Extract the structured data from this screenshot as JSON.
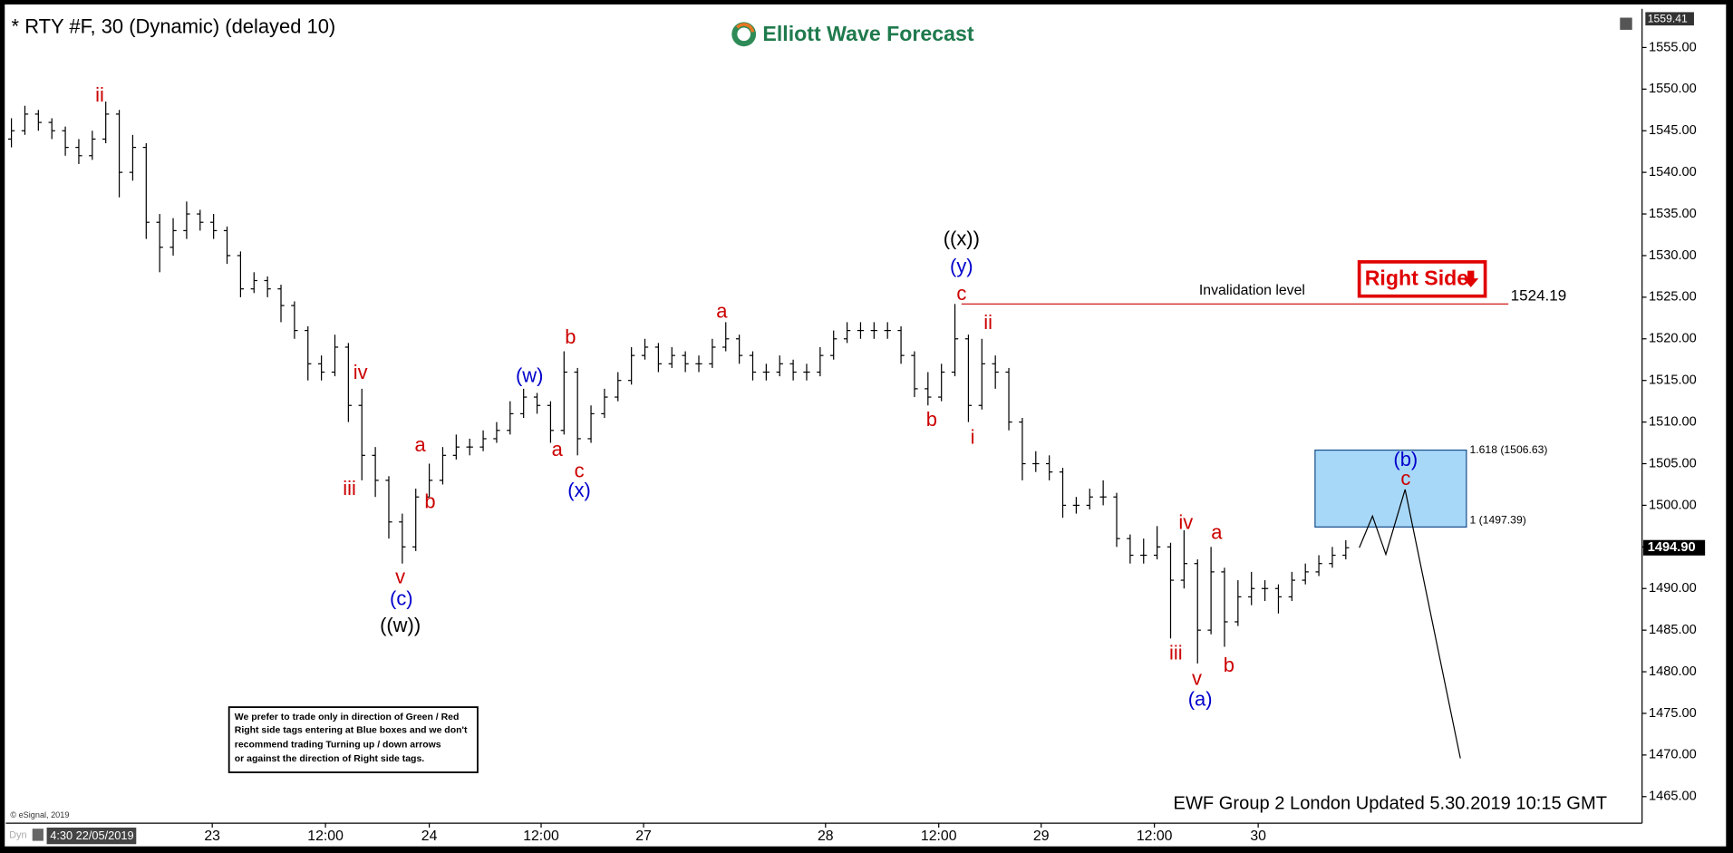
{
  "chart_data": {
    "type": "ohlc",
    "title": "* RTY #F, 30 (Dynamic) (delayed 10)",
    "brand": "Elliott Wave Forecast",
    "top_price_label": 1559.41,
    "bar_color": "#000000",
    "open": [
      1544,
      1545,
      1547,
      1546,
      1545,
      1543,
      1542,
      1544,
      1547,
      1540,
      1543,
      1534,
      1531,
      1533,
      1535,
      1534,
      1533,
      1530,
      1526,
      1527,
      1526,
      1524,
      1521,
      1517,
      1516,
      1519,
      1512,
      1506,
      1503,
      1498,
      1495,
      1501,
      1503,
      1506,
      1507,
      1507,
      1508,
      1509,
      1511,
      1513,
      1512,
      1509,
      1516,
      1508,
      1511,
      1513,
      1515,
      1518,
      1519,
      1517,
      1518,
      1517,
      1517,
      1519,
      1520,
      1518,
      1516,
      1516,
      1517,
      1516,
      1516,
      1518,
      1520,
      1521,
      1521,
      1521,
      1521,
      1518,
      1514,
      1513,
      1516,
      1520,
      1512,
      1517,
      1516,
      1510,
      1505,
      1505,
      1504,
      1500,
      1500,
      1501,
      1501,
      1496,
      1494,
      1494,
      1495,
      1491,
      1493,
      1485,
      1492,
      1486,
      1489,
      1490,
      1490,
      1489,
      1491,
      1492,
      1493,
      1494
    ],
    "high": [
      1546.5,
      1548,
      1547.5,
      1546.5,
      1545.5,
      1544,
      1545,
      1548.5,
      1547.5,
      1544.5,
      1543.5,
      1535,
      1534.5,
      1536.5,
      1535.5,
      1535,
      1533.5,
      1530.5,
      1528,
      1527.5,
      1526.5,
      1524.5,
      1521.5,
      1518,
      1520.5,
      1519.5,
      1514,
      1507,
      1503.5,
      1499,
      1502,
      1505,
      1507,
      1508.5,
      1508,
      1509,
      1510,
      1512.5,
      1514,
      1513.5,
      1512.5,
      1518.5,
      1516.5,
      1512,
      1514,
      1516,
      1519,
      1520,
      1519.5,
      1519,
      1518.5,
      1518,
      1520,
      1522,
      1520.5,
      1518.5,
      1517,
      1518,
      1517.5,
      1517,
      1519,
      1521,
      1522,
      1522,
      1522,
      1522,
      1521.5,
      1518.5,
      1516,
      1517,
      1524.19,
      1520.5,
      1520,
      1518,
      1516.5,
      1510.5,
      1506.5,
      1506,
      1504.5,
      1501,
      1502,
      1503,
      1501.5,
      1496.5,
      1496,
      1497.5,
      1495.5,
      1497,
      1493.5,
      1495,
      1492.5,
      1491,
      1492,
      1491,
      1490.5,
      1492,
      1493,
      1494,
      1495,
      1495.8
    ],
    "low": [
      1543,
      1544.5,
      1545,
      1544,
      1542,
      1541,
      1541.5,
      1543.5,
      1537,
      1539,
      1532,
      1528,
      1530,
      1532,
      1533,
      1532,
      1529,
      1525,
      1525.5,
      1525,
      1522,
      1520,
      1515,
      1515,
      1515.5,
      1510,
      1503,
      1501,
      1496,
      1493,
      1494.5,
      1501,
      1502.5,
      1505.5,
      1506,
      1506.5,
      1507.5,
      1508.5,
      1510.5,
      1511,
      1507.5,
      1508.5,
      1506,
      1507.5,
      1510.5,
      1512.5,
      1514.5,
      1517.5,
      1516,
      1516.5,
      1516,
      1516,
      1516.5,
      1518.5,
      1517,
      1515,
      1515,
      1515.5,
      1515,
      1515,
      1515.5,
      1517.5,
      1519.5,
      1520,
      1520,
      1520,
      1517,
      1513,
      1512,
      1512.5,
      1515.5,
      1510,
      1511.5,
      1514,
      1509,
      1503,
      1504,
      1503,
      1498.5,
      1499,
      1499.5,
      1500,
      1495,
      1493,
      1493,
      1493.5,
      1484,
      1490,
      1481,
      1484.5,
      1483,
      1485.5,
      1488,
      1488.5,
      1487,
      1488.5,
      1490.5,
      1491.5,
      1492.5,
      1493.5
    ],
    "close": [
      1545,
      1547,
      1546,
      1545,
      1543,
      1542,
      1544,
      1547,
      1540,
      1543,
      1534,
      1531,
      1533,
      1535,
      1534,
      1533,
      1530,
      1526,
      1527,
      1526,
      1524,
      1521,
      1517,
      1516,
      1519,
      1512,
      1506,
      1503,
      1498,
      1495,
      1501,
      1503,
      1506,
      1507,
      1507,
      1508,
      1509,
      1511,
      1513,
      1512,
      1509,
      1516,
      1508,
      1511,
      1513,
      1515,
      1518,
      1519,
      1517,
      1518,
      1517,
      1517,
      1519,
      1520,
      1518,
      1516,
      1516,
      1517,
      1516,
      1516,
      1518,
      1520,
      1521,
      1521,
      1521,
      1521,
      1518,
      1514,
      1513,
      1516,
      1520,
      1512,
      1517,
      1516,
      1510,
      1505,
      1505,
      1504,
      1500,
      1500,
      1501,
      1501,
      1496,
      1494,
      1494,
      1495,
      1491,
      1493,
      1485,
      1492,
      1486,
      1489,
      1490,
      1490,
      1489,
      1491,
      1492,
      1493,
      1494,
      1494.9
    ],
    "xlim": [
      -0.33,
      120.98
    ],
    "xticks": [
      {
        "value": 14.9,
        "label": "23"
      },
      {
        "value": 23.3,
        "label": "12:00"
      },
      {
        "value": 31,
        "label": "24"
      },
      {
        "value": 39.3,
        "label": "12:00"
      },
      {
        "value": 46.9,
        "label": "27"
      },
      {
        "value": 60.4,
        "label": "28"
      },
      {
        "value": 68.8,
        "label": "12:00"
      },
      {
        "value": 76.4,
        "label": "29"
      },
      {
        "value": 84.8,
        "label": "12:00"
      },
      {
        "value": 92.5,
        "label": "30"
      }
    ],
    "ylim": [
      1461.81,
      1559.38
    ],
    "yticks": [
      {
        "value": 1465,
        "label": "1465.00"
      },
      {
        "value": 1470,
        "label": "1470.00"
      },
      {
        "value": 1475,
        "label": "1475.00"
      },
      {
        "value": 1480,
        "label": "1480.00"
      },
      {
        "value": 1485,
        "label": "1485.00"
      },
      {
        "value": 1490,
        "label": "1490.00"
      },
      {
        "value": 1495,
        "label": "1495.00"
      },
      {
        "value": 1500,
        "label": "1500.00"
      },
      {
        "value": 1505,
        "label": "1505.00"
      },
      {
        "value": 1510,
        "label": "1510.00"
      },
      {
        "value": 1515,
        "label": "1515.00"
      },
      {
        "value": 1520,
        "label": "1520.00"
      },
      {
        "value": 1525,
        "label": "1525.00"
      },
      {
        "value": 1530,
        "label": "1530.00"
      },
      {
        "value": 1535,
        "label": "1535.00"
      },
      {
        "value": 1540,
        "label": "1540.00"
      },
      {
        "value": 1545,
        "label": "1545.00"
      },
      {
        "value": 1550,
        "label": "1550.00"
      },
      {
        "value": 1555,
        "label": "1555.00"
      }
    ],
    "last_price": {
      "value": 1494.9,
      "label": "1494.90"
    },
    "invalidation": {
      "text": "Invalidation level",
      "value": 1524.19,
      "color": "#cc0000"
    },
    "right_side_tag": "Right Side",
    "box": {
      "color": "#a8d8f8",
      "top": {
        "value": 1506.63,
        "label": "1.618 (1506.63)"
      },
      "bottom": {
        "value": 1497.39,
        "label": "1 (1497.39)"
      }
    },
    "projection": {
      "x": [
        100,
        100.98,
        101.97,
        103.4,
        107.5
      ],
      "values": [
        1494.9,
        1498.7,
        1494.1,
        1501.9,
        1469.6
      ]
    },
    "wave_labels": [
      {
        "text": "ii",
        "color": "#cc0000"
      },
      {
        "text": "iii",
        "color": "#cc0000"
      },
      {
        "text": "iv",
        "color": "#cc0000"
      },
      {
        "text": "v",
        "color": "#cc0000"
      },
      {
        "text": "(c)",
        "color": "#0000cc"
      },
      {
        "text": "((w))",
        "color": "#000000"
      },
      {
        "text": "a",
        "color": "#cc0000"
      },
      {
        "text": "b",
        "color": "#cc0000"
      },
      {
        "text": "(w)",
        "color": "#0000cc"
      },
      {
        "text": "a",
        "color": "#cc0000"
      },
      {
        "text": "b",
        "color": "#cc0000"
      },
      {
        "text": "c",
        "color": "#cc0000"
      },
      {
        "text": "(x)",
        "color": "#0000cc"
      },
      {
        "text": "a",
        "color": "#cc0000"
      },
      {
        "text": "b",
        "color": "#cc0000"
      },
      {
        "text": "c",
        "color": "#cc0000"
      },
      {
        "text": "(y)",
        "color": "#0000cc"
      },
      {
        "text": "((x))",
        "color": "#000000"
      },
      {
        "text": "i",
        "color": "#cc0000"
      },
      {
        "text": "ii",
        "color": "#cc0000"
      },
      {
        "text": "iv",
        "color": "#cc0000"
      },
      {
        "text": "a",
        "color": "#cc0000"
      },
      {
        "text": "iii",
        "color": "#cc0000"
      },
      {
        "text": "v",
        "color": "#cc0000"
      },
      {
        "text": "(a)",
        "color": "#0000cc"
      },
      {
        "text": "b",
        "color": "#cc0000"
      },
      {
        "text": "(b)",
        "color": "#0000cc"
      },
      {
        "text": "c",
        "color": "#cc0000"
      }
    ],
    "disclaimer": [
      "We prefer to trade only in direction of Green / Red",
      "Right side tags entering at Blue boxes and we don't",
      "recommend trading Turning up / down arrows",
      "or against the direction of Right side tags."
    ],
    "footer": "EWF Group 2 London  Updated 5.30.2019 10:15 GMT",
    "copyright": "© eSignal, 2019",
    "mode": "Dyn",
    "cursor_time": "4:30 22/05/2019"
  }
}
